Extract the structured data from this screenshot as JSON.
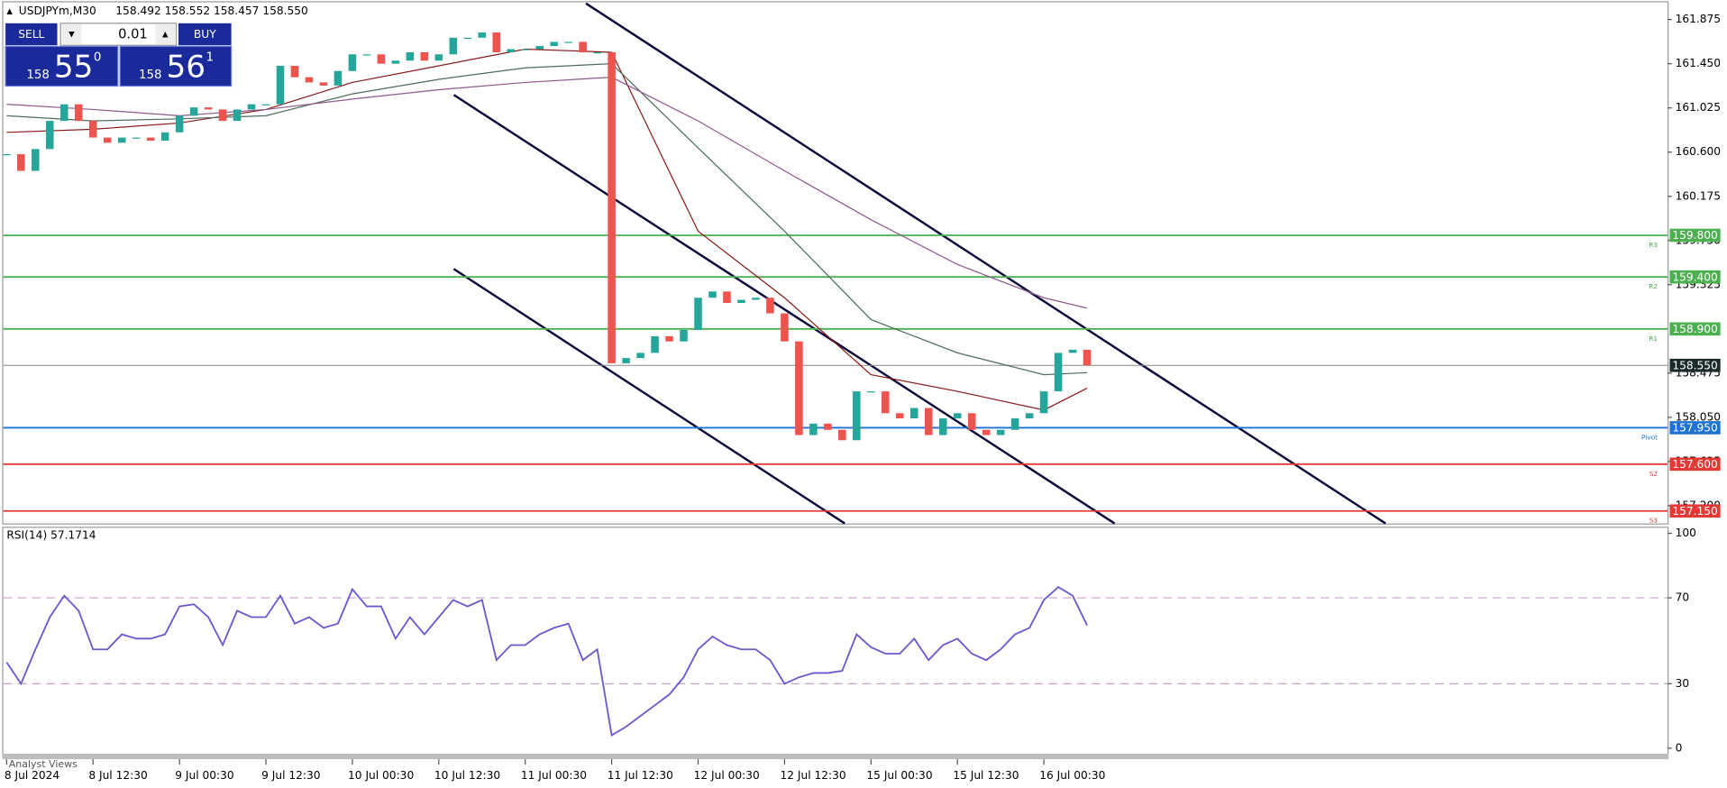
{
  "header": {
    "symbol": "USDJPYm,M30",
    "ohlc": "158.492 158.552 158.457 158.550"
  },
  "trade_panel": {
    "sell": "SELL",
    "buy": "BUY",
    "lot": "0.01",
    "bid_big": "158",
    "bid_main": "55",
    "bid_sup": "0",
    "ask_big": "158",
    "ask_main": "56",
    "ask_sup": "1"
  },
  "footer": "Analyst Views",
  "chart_data": [
    {
      "type": "candlestick",
      "categories": [
        "8 Jul 2024",
        null,
        null,
        null,
        null,
        null,
        "8 Jul 12:30",
        null,
        null,
        null,
        null,
        null,
        "9 Jul 00:30",
        null,
        null,
        null,
        null,
        null,
        "9 Jul 12:30",
        null,
        null,
        null,
        null,
        null,
        "10 Jul 00:30",
        null,
        null,
        null,
        null,
        null,
        "10 Jul 12:30",
        null,
        null,
        null,
        null,
        null,
        "11 Jul 00:30",
        null,
        null,
        null,
        null,
        null,
        "11 Jul 12:30",
        null,
        null,
        null,
        null,
        null,
        "12 Jul 00:30",
        null,
        null,
        null,
        null,
        null,
        "12 Jul 12:30",
        null,
        null,
        null,
        null,
        null,
        "15 Jul 00:30",
        null,
        null,
        null,
        null,
        null,
        "15 Jul 12:30",
        null,
        null,
        null,
        null,
        null,
        "16 Jul 00:30",
        null,
        null,
        null
      ],
      "values": [
        160.58,
        160.42,
        160.63,
        160.9,
        161.06,
        160.9,
        160.74,
        160.69,
        160.74,
        160.74,
        160.71,
        160.79,
        160.95,
        161.03,
        161.01,
        160.9,
        161.01,
        161.06,
        161.06,
        161.43,
        161.32,
        161.27,
        161.24,
        161.38,
        161.54,
        161.54,
        161.45,
        161.48,
        161.56,
        161.48,
        161.54,
        161.7,
        161.7,
        161.75,
        161.56,
        161.59,
        161.59,
        161.62,
        161.66,
        161.66,
        161.56,
        161.56,
        158.57,
        158.62,
        158.67,
        158.83,
        158.78,
        158.89,
        159.2,
        159.26,
        159.15,
        159.18,
        159.2,
        159.05,
        158.78,
        157.88,
        157.99,
        157.93,
        157.83,
        158.3,
        158.3,
        158.09,
        158.04,
        158.14,
        157.88,
        158.04,
        158.09,
        157.93,
        157.88,
        157.93,
        158.04,
        158.09,
        158.3,
        158.67,
        158.7,
        158.55
      ],
      "up_color": "#26a69a",
      "down_color": "#ef5350",
      "ylim": [
        157.03,
        162.04
      ],
      "yticks": [
        {
          "value": 161.875,
          "label": "161.875"
        },
        {
          "value": 161.45,
          "label": "161.450"
        },
        {
          "value": 161.025,
          "label": "161.025"
        },
        {
          "value": 160.6,
          "label": "160.600"
        },
        {
          "value": 160.175,
          "label": "160.175"
        },
        {
          "value": 159.75,
          "label": "159.750"
        },
        {
          "value": 159.325,
          "label": "159.325"
        },
        {
          "value": 158.475,
          "label": "158.475"
        },
        {
          "value": 158.05,
          "label": "158.050"
        },
        {
          "value": 157.625,
          "label": "157.625"
        },
        {
          "value": 157.2,
          "label": "157.200"
        }
      ],
      "series": [
        {
          "color": "#8b1a1a",
          "x": [
            0,
            6,
            12,
            18,
            24,
            30,
            36,
            42,
            48,
            54,
            60,
            66,
            72,
            75
          ],
          "values": [
            160.79,
            160.82,
            160.88,
            161.01,
            161.27,
            161.43,
            161.59,
            161.56,
            159.84,
            159.2,
            158.46,
            158.3,
            158.12,
            158.33
          ]
        },
        {
          "color": "#4a6e5a",
          "x": [
            0,
            6,
            12,
            18,
            24,
            30,
            36,
            42,
            48,
            54,
            60,
            66,
            72,
            75
          ],
          "values": [
            160.95,
            160.9,
            160.92,
            160.95,
            161.16,
            161.3,
            161.41,
            161.45,
            160.64,
            159.84,
            158.99,
            158.67,
            158.46,
            158.48
          ]
        },
        {
          "color": "#8e5a8e",
          "x": [
            0,
            6,
            12,
            18,
            24,
            30,
            36,
            42,
            48,
            54,
            60,
            66,
            72,
            75
          ],
          "values": [
            161.06,
            161.01,
            160.95,
            161.01,
            161.11,
            161.2,
            161.27,
            161.32,
            160.9,
            160.42,
            159.95,
            159.52,
            159.2,
            159.1
          ]
        }
      ],
      "levels": [
        {
          "name": "R3",
          "value": 159.8,
          "label": "159.800",
          "color": "#4caf50"
        },
        {
          "name": "R2",
          "value": 159.4,
          "label": "159.400",
          "color": "#4caf50"
        },
        {
          "name": "R1",
          "value": 158.9,
          "label": "158.900",
          "color": "#4caf50"
        },
        {
          "name": "Pivot",
          "value": 157.95,
          "label": "157.950",
          "color": "#1e73d2"
        },
        {
          "name": "S2",
          "value": 157.6,
          "label": "157.600",
          "color": "#e53935"
        },
        {
          "name": "S3",
          "value": 157.15,
          "label": "157.150",
          "color": "#e53935"
        }
      ],
      "current_price": {
        "value": 158.55,
        "label": "158.550",
        "color": "#888888"
      }
    },
    {
      "type": "line",
      "title": "RSI(14) 57.1714",
      "color": "#6a5acd",
      "values": [
        40,
        30,
        46,
        61,
        71,
        64,
        46,
        46,
        53,
        51,
        51,
        53,
        66,
        67,
        61,
        48,
        64,
        61,
        61,
        71,
        58,
        61,
        56,
        58,
        74,
        66,
        66,
        51,
        61,
        53,
        61,
        69,
        66,
        69,
        41,
        48,
        48,
        53,
        56,
        58,
        41,
        46,
        6,
        10,
        15,
        20,
        25,
        33,
        46,
        52,
        48,
        46,
        46,
        41,
        30,
        33,
        35,
        35,
        36,
        53,
        47,
        44,
        44,
        51,
        41,
        48,
        51,
        44,
        41,
        46,
        53,
        56,
        69,
        75,
        71,
        57.17
      ],
      "ylim": [
        0,
        100
      ],
      "yticks": [
        0,
        30,
        70,
        100
      ],
      "dashed_levels": [
        30,
        70
      ]
    }
  ]
}
